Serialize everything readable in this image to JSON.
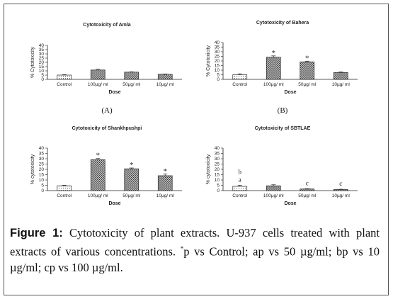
{
  "colors": {
    "bar_fill": "#b8b8b8",
    "bar_stroke": "#222222",
    "frame": "#555555"
  },
  "caption": {
    "label": "Figure 1:",
    "text_before_sup": "Cytotoxicity of plant extracts. U-937 cells treated with plant extracts of various concentrations. ",
    "sup": "*",
    "text_after_sup": "p vs Control; ap vs 50 µg/ml; bp vs 10 µg/ml; cp vs 100 µg/ml."
  },
  "chart_data": [
    {
      "type": "bar",
      "panel": "(A)",
      "title": "Cytotoxicity of Amla",
      "ylabel": "% Cytotoxicity",
      "xlabel": "Dose",
      "categories": [
        "Control",
        "100µg/ ml",
        "50µg/ ml",
        "10µg/ ml"
      ],
      "values": [
        5,
        11,
        8.5,
        6
      ],
      "errors": [
        0.6,
        1,
        0.4,
        0.4
      ],
      "annotations": [
        "",
        "",
        "",
        ""
      ],
      "bar_patterns": [
        "dots",
        "hatch",
        "hatch",
        "hatch"
      ],
      "ylim": [
        0,
        40
      ],
      "yticks": [
        0,
        5,
        10,
        15,
        20,
        25,
        30,
        35,
        40
      ]
    },
    {
      "type": "bar",
      "panel": "(B)",
      "title": "Cytotoxicity of Bahera",
      "ylabel": "% Cytotoxicity",
      "xlabel": "Dose",
      "categories": [
        "Control",
        "100µg/ ml",
        "50µg/ ml",
        "10µg/ ml"
      ],
      "values": [
        5,
        24,
        19,
        7.5
      ],
      "errors": [
        1,
        1.5,
        0.8,
        0.6
      ],
      "annotations": [
        "",
        "*",
        "*",
        ""
      ],
      "bar_patterns": [
        "dots",
        "hatch",
        "hatch",
        "hatch"
      ],
      "ylim": [
        0,
        40
      ],
      "yticks": [
        0,
        5,
        10,
        15,
        20,
        25,
        30,
        35,
        40
      ]
    },
    {
      "type": "bar",
      "panel": "",
      "title": "Cytotoxicity of Shankhpushpi",
      "ylabel": "% cytotoxicity",
      "xlabel": "Dose",
      "categories": [
        "Control",
        "100µg/ ml",
        "50µg/ ml",
        "10µg/ ml"
      ],
      "values": [
        4.5,
        29,
        20.5,
        14
      ],
      "errors": [
        0.6,
        1.2,
        0.8,
        1.5
      ],
      "annotations": [
        "",
        "*",
        "*",
        "*"
      ],
      "bar_patterns": [
        "dots",
        "hatch",
        "hatch",
        "hatch"
      ],
      "ylim": [
        0,
        40
      ],
      "yticks": [
        0,
        5,
        10,
        15,
        20,
        25,
        30,
        35,
        40
      ]
    },
    {
      "type": "bar",
      "panel": "",
      "title": "Cytotoxicity of SBTLAE",
      "ylabel": "% cytotoxicity",
      "xlabel": "Dose",
      "categories": [
        "Control",
        "100µg/ ml",
        "50µg/ ml",
        "10µg/ ml"
      ],
      "values": [
        4,
        4.5,
        1.5,
        1
      ],
      "errors": [
        1,
        1,
        0.3,
        0.3
      ],
      "annotations": [
        "b\na",
        "",
        "c",
        "c"
      ],
      "bar_patterns": [
        "dots",
        "hatch",
        "hatch",
        "hatch"
      ],
      "ylim": [
        0,
        40
      ],
      "yticks": [
        0,
        5,
        10,
        15,
        20,
        25,
        30,
        35,
        40
      ]
    }
  ]
}
